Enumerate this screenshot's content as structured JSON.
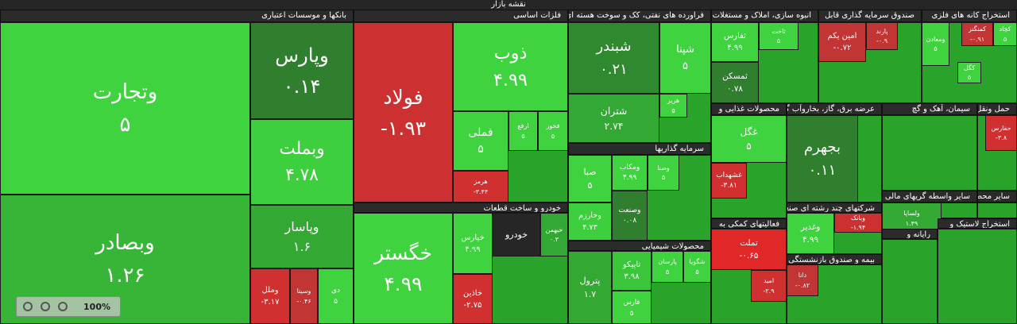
{
  "title": "نقشه بازار",
  "zoom": "100%",
  "sectors": [
    {
      "name": "بانکها و موسسات اعتباری",
      "tiles": [
        {
          "name": "وتجارت",
          "value": "۵",
          "color": "#3fd43f"
        },
        {
          "name": "وبصادر",
          "value": "۱.۲۶",
          "color": "#36b536"
        },
        {
          "name": "وپارس",
          "value": "۰.۱۴",
          "color": "#2f7f2f"
        },
        {
          "name": "وبملت",
          "value": "۴.۷۸",
          "color": "#3ecf3e"
        },
        {
          "name": "وپاسار",
          "value": "۱.۶",
          "color": "#33a833"
        },
        {
          "name": "وملل",
          "value": "-۳.۱۷",
          "color": "#d03030"
        },
        {
          "name": "وسینا",
          "value": "-۰.۴۶",
          "color": "#c23535"
        },
        {
          "name": "دی",
          "value": "۵",
          "color": "#3fd43f"
        }
      ]
    },
    {
      "name": "فلزات اساسی",
      "tiles": [
        {
          "name": "فولاد",
          "value": "-۱.۹۳",
          "color": "#cc3030"
        },
        {
          "name": "ذوب",
          "value": "۴.۹۹",
          "color": "#3fd43f"
        },
        {
          "name": "فملی",
          "value": "۵",
          "color": "#3fd43f"
        },
        {
          "name": "هرمز",
          "value": "-۳.۴۴",
          "color": "#d03030"
        },
        {
          "name": "ارفع",
          "value": "۵",
          "color": "#3fd43f"
        },
        {
          "name": "فخوز",
          "value": "۵",
          "color": "#3fd43f"
        }
      ]
    },
    {
      "name": "خودرو و ساخت قطعات",
      "tiles": [
        {
          "name": "خگستر",
          "value": "۴.۹۹",
          "color": "#3fd43f"
        },
        {
          "name": "خپارس",
          "value": "۴.۹۹",
          "color": "#3fd43f"
        },
        {
          "name": "خاذین",
          "value": "-۲.۷۵",
          "color": "#d03030"
        },
        {
          "name": "خودرو",
          "color": "#262626"
        },
        {
          "name": "خبهمن",
          "value": "۰.۳",
          "color": "#34a834"
        }
      ]
    },
    {
      "name": "فراورده های نفتی، کک و سوخت هسته ای",
      "tiles": [
        {
          "name": "شبندر",
          "value": "۰.۲۱",
          "color": "#2f8a2f"
        },
        {
          "name": "شتران",
          "value": "۲.۷۴",
          "color": "#34a834"
        },
        {
          "name": "شپنا",
          "value": "۵",
          "color": "#3fd43f"
        },
        {
          "name": "هریز",
          "value": "۵",
          "color": "#3fd43f"
        }
      ]
    },
    {
      "name": "سرمایه گذاریها",
      "tiles": [
        {
          "name": "صبا",
          "value": "۵",
          "color": "#3fd43f"
        },
        {
          "name": "وخارزم",
          "value": "۴.۷۳",
          "color": "#3ecf3e"
        },
        {
          "name": "ومکاب",
          "value": "۴.۹۹",
          "color": "#3fd43f"
        },
        {
          "name": "وصنعت",
          "value": "۰.۰۸",
          "color": "#2f7f2f"
        },
        {
          "name": "وصنا",
          "value": "۵",
          "color": "#3fd43f"
        }
      ]
    },
    {
      "name": "محصولات شیمیایی",
      "tiles": [
        {
          "name": "پترول",
          "value": "۱.۷",
          "color": "#33a833"
        },
        {
          "name": "تاپیکو",
          "value": "۳.۹۸",
          "color": "#3bc53b"
        },
        {
          "name": "فارس",
          "value": "۵",
          "color": "#3fd43f"
        },
        {
          "name": "پارسان",
          "value": "۵",
          "color": "#3fd43f"
        },
        {
          "name": "شگویا",
          "value": "۵",
          "color": "#3fd43f"
        }
      ]
    },
    {
      "name": "انبوه سازی، املاک و مستغلات",
      "tiles": [
        {
          "name": "ثفارس",
          "value": "۴.۹۹",
          "color": "#3fd43f"
        },
        {
          "name": "ثمسکن",
          "value": "۰.۷۸",
          "color": "#2f7f2f"
        },
        {
          "name": "ثاخت",
          "value": "۵",
          "color": "#3fd43f"
        }
      ]
    },
    {
      "name": "صندوق سرمایه گذاری قابل",
      "tiles": [
        {
          "name": "امین یکم",
          "value": "-۰.۷۲",
          "color": "#c23535"
        },
        {
          "name": "پارند",
          "value": "-۰.۹",
          "color": "#c23535"
        }
      ]
    },
    {
      "name": "استخراج کانه های فلزی",
      "tiles": [
        {
          "name": "ومعادن",
          "value": "۵",
          "color": "#3fd43f"
        },
        {
          "name": "کمنگنز",
          "value": "-۰.۹۱",
          "color": "#c23535"
        },
        {
          "name": "کچاد",
          "value": "۵",
          "color": "#3fd43f"
        },
        {
          "name": "کگل",
          "value": "۵",
          "color": "#3fd43f"
        }
      ]
    },
    {
      "name": "محصولات غذایی و",
      "tiles": [
        {
          "name": "غگل",
          "value": "۵",
          "color": "#3fd43f"
        },
        {
          "name": "غشهداب",
          "value": "-۳.۸۱",
          "color": "#d03030"
        }
      ]
    },
    {
      "name": "عرضه برق، گاز، بخاروآب گرم",
      "tiles": [
        {
          "name": "بجهرم",
          "value": "۰.۱۱",
          "color": "#2f7f2f"
        }
      ]
    },
    {
      "name": "شرکتهای چند رشته ای صنعتی",
      "tiles": [
        {
          "name": "وغدیر",
          "value": "۴.۹۹",
          "color": "#3fd43f"
        },
        {
          "name": "وبانک",
          "value": "-۱.۹۴",
          "color": "#cc3030"
        }
      ]
    },
    {
      "name": "فعالیتهای کمکی به",
      "tiles": [
        {
          "name": "تملت",
          "value": "-۰.۶۵",
          "color": "#e02828"
        },
        {
          "name": "امید",
          "value": "-۲.۹",
          "color": "#d03030"
        }
      ]
    },
    {
      "name": "بیمه و صندوق بازنشستگی به",
      "tiles": [
        {
          "name": "دانا",
          "value": "-۰.۸۲",
          "color": "#c23535"
        }
      ]
    },
    {
      "name": "سیمان، آهک و گچ",
      "tiles": []
    },
    {
      "name": "حمل ونقل، انباردای",
      "tiles": [
        {
          "name": "حفارس",
          "value": "-۳.۸",
          "color": "#d03030"
        }
      ]
    },
    {
      "name": "سایر واسطه گریهای مالی",
      "tiles": [
        {
          "name": "ولساپا",
          "value": "۱.۴۹",
          "color": "#33a833"
        }
      ]
    },
    {
      "name": "سایر محصولات",
      "tiles": []
    },
    {
      "name": "رایانه و",
      "tiles": []
    },
    {
      "name": "استخراج لاستیک و",
      "tiles": []
    }
  ]
}
